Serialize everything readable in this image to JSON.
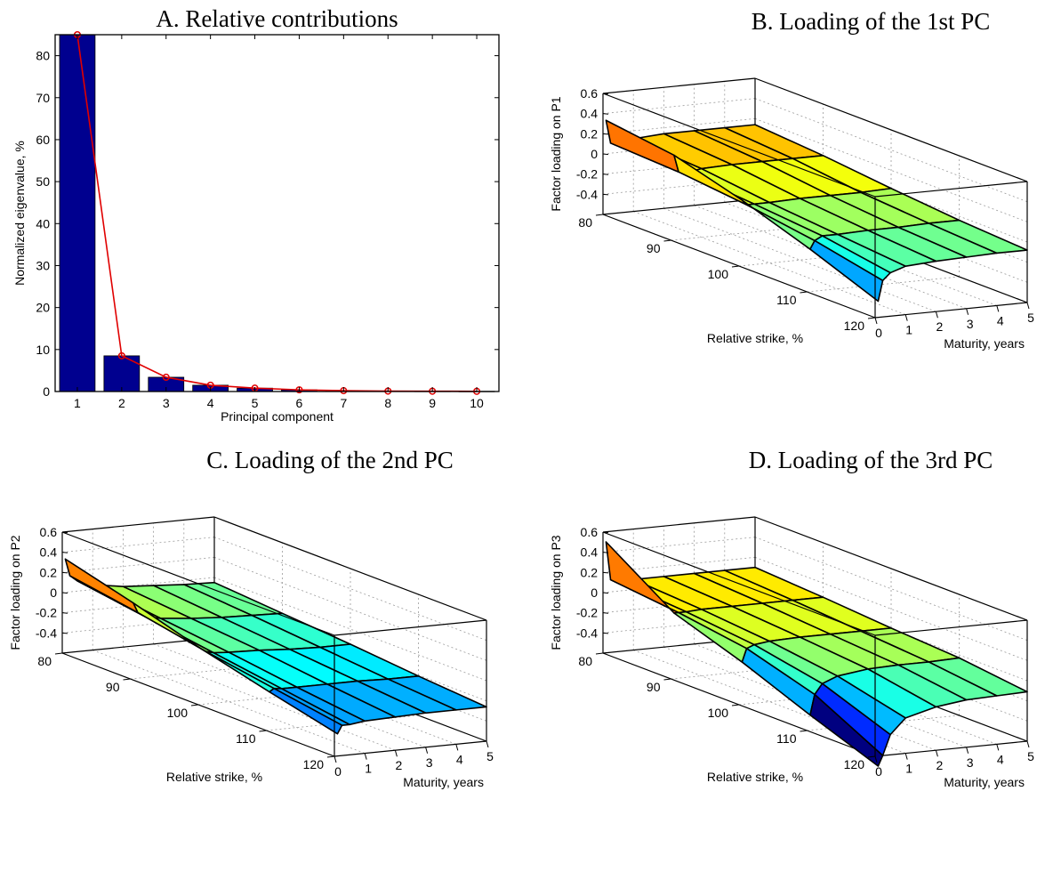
{
  "chart_data": [
    {
      "id": "A",
      "type": "bar",
      "title": "A. Relative contributions",
      "xlabel": "Principal component",
      "ylabel": "Normalized eigenvalue, %",
      "categories": [
        "1",
        "2",
        "3",
        "4",
        "5",
        "6",
        "7",
        "8",
        "9",
        "10"
      ],
      "values": [
        85.0,
        8.5,
        3.4,
        1.5,
        0.8,
        0.4,
        0.2,
        0.1,
        0.07,
        0.05
      ],
      "ylim": [
        0,
        85
      ],
      "yticks": [
        0,
        10,
        20,
        30,
        40,
        50,
        60,
        70,
        80
      ],
      "xlim": [
        0.5,
        10.5
      ],
      "bar_color": "#00008f",
      "line_color": "#e00000",
      "grid": false
    },
    {
      "id": "B",
      "type": "surface",
      "title": "B. Loading of the 1st PC",
      "xlabel": "Maturity, years",
      "ylabel": "Relative strike, %",
      "zlabel": "Factor loading on P1",
      "maturity": [
        0.1,
        0.25,
        0.5,
        1,
        2,
        3,
        4,
        5
      ],
      "strike": [
        80,
        90,
        100,
        110,
        120
      ],
      "z": [
        [
          0.33,
          0.24,
          0.05,
          -0.18,
          -0.44
        ],
        [
          0.1,
          0.07,
          0.0,
          -0.1,
          -0.24
        ],
        [
          0.07,
          0.05,
          0.0,
          -0.06,
          -0.17
        ],
        [
          0.12,
          0.08,
          0.0,
          -0.06,
          -0.12
        ],
        [
          0.14,
          0.09,
          0.01,
          -0.05,
          -0.1
        ],
        [
          0.14,
          0.09,
          0.01,
          -0.05,
          -0.09
        ],
        [
          0.14,
          0.09,
          0.01,
          -0.04,
          -0.08
        ],
        [
          0.14,
          0.09,
          0.02,
          -0.04,
          -0.08
        ]
      ],
      "zlim": [
        -0.6,
        0.6
      ],
      "zticks": [
        -0.4,
        -0.2,
        0,
        0.2,
        0.4,
        0.6
      ],
      "xticks": [
        0,
        1,
        2,
        3,
        4,
        5
      ],
      "yticks": [
        80,
        90,
        100,
        110,
        120
      ],
      "colormap": "jet",
      "grid": true
    },
    {
      "id": "C",
      "type": "surface",
      "title": "C. Loading of the 2nd PC",
      "xlabel": "Maturity, years",
      "ylabel": "Relative strike, %",
      "zlabel": "Factor loading on P2",
      "maturity": [
        0.1,
        0.25,
        0.5,
        1,
        2,
        3,
        4,
        5
      ],
      "strike": [
        80,
        90,
        100,
        110,
        120
      ],
      "z": [
        [
          0.33,
          0.15,
          -0.05,
          -0.22,
          -0.38
        ],
        [
          0.16,
          0.05,
          -0.08,
          -0.19,
          -0.3
        ],
        [
          0.1,
          0.0,
          -0.1,
          -0.2,
          -0.3
        ],
        [
          0.05,
          -0.03,
          -0.11,
          -0.2,
          -0.28
        ],
        [
          0.0,
          -0.06,
          -0.12,
          -0.2,
          -0.27
        ],
        [
          -0.02,
          -0.08,
          -0.14,
          -0.2,
          -0.26
        ],
        [
          -0.04,
          -0.09,
          -0.15,
          -0.21,
          -0.26
        ],
        [
          -0.05,
          -0.1,
          -0.15,
          -0.21,
          -0.26
        ]
      ],
      "zlim": [
        -0.6,
        0.6
      ],
      "zticks": [
        -0.4,
        -0.2,
        0,
        0.2,
        0.4,
        0.6
      ],
      "xticks": [
        0,
        1,
        2,
        3,
        4,
        5
      ],
      "yticks": [
        80,
        90,
        100,
        110,
        120
      ],
      "colormap": "jet",
      "grid": true
    },
    {
      "id": "D",
      "type": "surface",
      "title": "D. Loading of the 3rd PC",
      "xlabel": "Maturity, years",
      "ylabel": "Relative strike, %",
      "zlabel": "Factor loading on P3",
      "maturity": [
        0.1,
        0.25,
        0.5,
        1,
        2,
        3,
        4,
        5
      ],
      "strike": [
        80,
        90,
        100,
        110,
        120
      ],
      "z": [
        [
          0.5,
          0.05,
          -0.18,
          -0.45,
          -0.7
        ],
        [
          0.12,
          0.05,
          -0.05,
          -0.25,
          -0.6
        ],
        [
          0.1,
          0.05,
          -0.02,
          -0.15,
          -0.4
        ],
        [
          0.1,
          0.06,
          0.0,
          -0.09,
          -0.25
        ],
        [
          0.1,
          0.06,
          0.01,
          -0.05,
          -0.17
        ],
        [
          0.1,
          0.06,
          0.01,
          -0.04,
          -0.13
        ],
        [
          0.1,
          0.06,
          0.01,
          -0.04,
          -0.12
        ],
        [
          0.1,
          0.06,
          0.01,
          -0.03,
          -0.11
        ]
      ],
      "zlim": [
        -0.6,
        0.6
      ],
      "zticks": [
        -0.4,
        -0.2,
        0,
        0.2,
        0.4,
        0.6
      ],
      "xticks": [
        0,
        1,
        2,
        3,
        4,
        5
      ],
      "yticks": [
        80,
        90,
        100,
        110,
        120
      ],
      "colormap": "jet",
      "grid": true
    }
  ]
}
